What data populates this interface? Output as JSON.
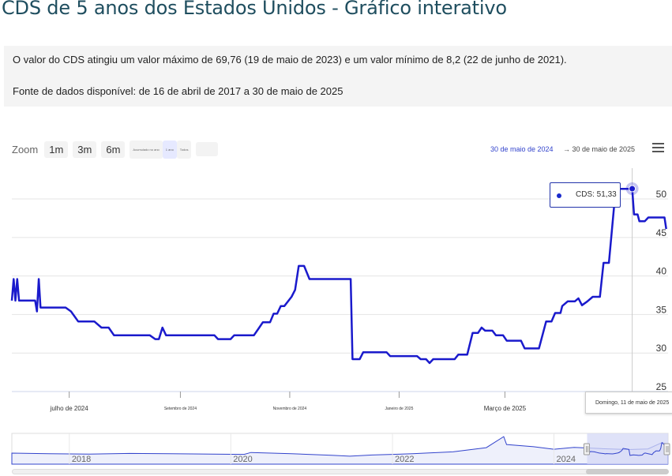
{
  "page": {
    "title": "CDS de 5 anos dos Estados Unidos - Gráfico interativo",
    "info_line1": "O valor do CDS atingiu um valor máximo de 69,76 (19 de maio de 2023) e um valor mínimo de 8,2 (22 de junho de 2021).",
    "info_line2": "Fonte de dados disponível: de 16 de abril de 2017 a 30 de maio de 2025"
  },
  "toolbar": {
    "zoom_label": "Zoom",
    "buttons": [
      "1m",
      "3m",
      "6m",
      "Acumulado no ano",
      "1 ano",
      "Todos"
    ],
    "range_from": "30 de maio de 2024",
    "range_to": "→ 30 de maio de 2025"
  },
  "tooltip": {
    "text": "CDS: 51,33",
    "date": "Domingo, 11 de maio de 2025"
  },
  "colors": {
    "series": "#1a1acc",
    "navigator_fill": "#d4d8f6",
    "title": "#1f4e5f"
  },
  "chart_data": [
    {
      "type": "line",
      "series": [
        {
          "name": "CDS",
          "points": [
            [
              "2024-05-30",
              36.8
            ],
            [
              "2024-05-31",
              39.6
            ],
            [
              "2024-06-01",
              36.8
            ],
            [
              "2024-06-02",
              39.6
            ],
            [
              "2024-06-03",
              36.8
            ],
            [
              "2024-06-12",
              36.8
            ],
            [
              "2024-06-13",
              35.4
            ],
            [
              "2024-06-14",
              39.6
            ],
            [
              "2024-06-15",
              35.9
            ],
            [
              "2024-06-29",
              35.9
            ],
            [
              "2024-07-02",
              35.4
            ],
            [
              "2024-07-06",
              34.1
            ],
            [
              "2024-07-15",
              34.1
            ],
            [
              "2024-07-19",
              33.3
            ],
            [
              "2024-07-23",
              33.3
            ],
            [
              "2024-07-26",
              32.3
            ],
            [
              "2024-08-15",
              32.3
            ],
            [
              "2024-08-18",
              31.8
            ],
            [
              "2024-08-20",
              31.8
            ],
            [
              "2024-08-22",
              33.3
            ],
            [
              "2024-08-24",
              32.3
            ],
            [
              "2024-09-20",
              32.3
            ],
            [
              "2024-09-22",
              31.8
            ],
            [
              "2024-09-29",
              31.8
            ],
            [
              "2024-10-01",
              32.3
            ],
            [
              "2024-10-12",
              32.3
            ],
            [
              "2024-10-15",
              33.3
            ],
            [
              "2024-10-17",
              34.0
            ],
            [
              "2024-10-21",
              34.0
            ],
            [
              "2024-10-23",
              35.1
            ],
            [
              "2024-10-25",
              35.1
            ],
            [
              "2024-10-27",
              36.1
            ],
            [
              "2024-10-29",
              36.1
            ],
            [
              "2024-11-02",
              37.3
            ],
            [
              "2024-11-04",
              38.2
            ],
            [
              "2024-11-06",
              41.3
            ],
            [
              "2024-11-09",
              41.3
            ],
            [
              "2024-11-12",
              39.6
            ],
            [
              "2024-12-05",
              39.6
            ],
            [
              "2024-12-06",
              29.2
            ],
            [
              "2024-12-10",
              29.2
            ],
            [
              "2024-12-12",
              30.1
            ],
            [
              "2024-12-25",
              30.1
            ],
            [
              "2024-12-27",
              29.6
            ],
            [
              "2025-01-11",
              29.6
            ],
            [
              "2025-01-13",
              29.2
            ],
            [
              "2025-01-16",
              29.2
            ],
            [
              "2025-01-18",
              28.7
            ],
            [
              "2025-01-20",
              29.2
            ],
            [
              "2025-02-01",
              29.2
            ],
            [
              "2025-02-03",
              29.8
            ],
            [
              "2025-02-08",
              29.8
            ],
            [
              "2025-02-11",
              32.6
            ],
            [
              "2025-02-14",
              32.6
            ],
            [
              "2025-02-16",
              33.3
            ],
            [
              "2025-02-18",
              32.9
            ],
            [
              "2025-02-22",
              32.9
            ],
            [
              "2025-02-24",
              32.3
            ],
            [
              "2025-02-28",
              32.3
            ],
            [
              "2025-03-02",
              31.6
            ],
            [
              "2025-03-10",
              31.6
            ],
            [
              "2025-03-12",
              30.6
            ],
            [
              "2025-03-20",
              30.6
            ],
            [
              "2025-03-24",
              34.1
            ],
            [
              "2025-03-27",
              34.1
            ],
            [
              "2025-03-29",
              35.2
            ],
            [
              "2025-04-01",
              35.2
            ],
            [
              "2025-04-02",
              36.1
            ],
            [
              "2025-04-05",
              36.7
            ],
            [
              "2025-04-09",
              36.7
            ],
            [
              "2025-04-11",
              37.1
            ],
            [
              "2025-04-13",
              36.2
            ],
            [
              "2025-04-16",
              36.7
            ],
            [
              "2025-04-19",
              37.3
            ],
            [
              "2025-04-23",
              37.3
            ],
            [
              "2025-04-25",
              41.7
            ],
            [
              "2025-04-28",
              41.7
            ],
            [
              "2025-05-01",
              49.3
            ],
            [
              "2025-05-02",
              50.3
            ],
            [
              "2025-05-03",
              49.3
            ],
            [
              "2025-05-04",
              51.3
            ],
            [
              "2025-05-11",
              51.3
            ],
            [
              "2025-05-12",
              48.0
            ],
            [
              "2025-05-14",
              48.0
            ],
            [
              "2025-05-15",
              47.1
            ],
            [
              "2025-05-18",
              47.1
            ],
            [
              "2025-05-20",
              47.6
            ],
            [
              "2025-05-29",
              47.6
            ],
            [
              "2025-05-30",
              46.1
            ]
          ]
        }
      ],
      "xlim": [
        "2024-05-30",
        "2025-05-31"
      ],
      "ylim": [
        25,
        54
      ],
      "yticks": [
        25,
        30,
        35,
        40,
        45,
        50
      ],
      "xtick_labels": [
        {
          "date": "2024-07-01",
          "label": "julho de 2024"
        },
        {
          "date": "2024-09-01",
          "label": "Setembro de 2024"
        },
        {
          "date": "2024-11-01",
          "label": "Novembro de 2024"
        },
        {
          "date": "2025-01-01",
          "label": "Janeiro de 2025"
        },
        {
          "date": "2025-03-01",
          "label": "Março de 2025"
        }
      ],
      "grid": true
    },
    {
      "type": "area",
      "role": "navigator",
      "x": [
        "2017-04-16",
        "2017-10",
        "2018-04",
        "2018-10",
        "2019-04",
        "2019-10",
        "2020-03",
        "2020-04",
        "2020-10",
        "2021-04",
        "2021-06-22",
        "2021-10",
        "2022-04",
        "2022-10",
        "2023-03",
        "2023-05-19",
        "2023-06",
        "2023-10",
        "2024-01",
        "2024-04",
        "2024-08",
        "2024-12",
        "2025-03",
        "2025-05-04",
        "2025-05-30"
      ],
      "values": [
        18,
        16,
        15,
        17,
        16,
        15,
        14,
        20,
        16,
        11,
        8.2,
        12,
        16,
        22,
        35,
        69.76,
        45,
        38,
        30,
        36,
        32,
        29,
        31,
        51,
        46
      ],
      "xtick_labels": [
        "2018",
        "2020",
        "2022",
        "2024"
      ],
      "selection": [
        "2024-05-30",
        "2025-05-30"
      ]
    }
  ]
}
